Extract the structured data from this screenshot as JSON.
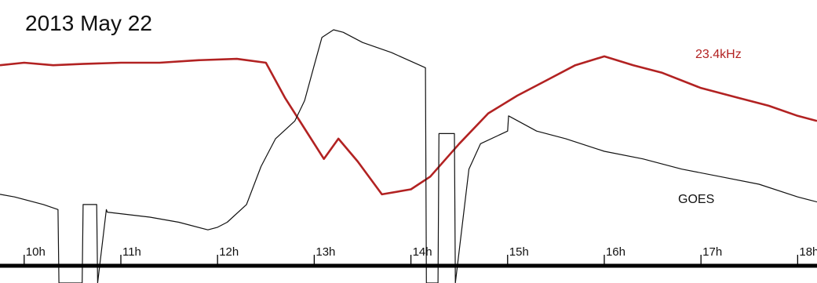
{
  "chart_data": {
    "type": "line",
    "title": "2013 May 22",
    "xlabel": "",
    "ylabel": "",
    "x_unit": "hour (UT)",
    "xlim": [
      9.75,
      18.2
    ],
    "ticks": [
      {
        "value": 10,
        "label": "10h"
      },
      {
        "value": 11,
        "label": "11h"
      },
      {
        "value": 12,
        "label": "12h"
      },
      {
        "value": 13,
        "label": "13h"
      },
      {
        "value": 14,
        "label": "14h"
      },
      {
        "value": 15,
        "label": "15h"
      },
      {
        "value": 16,
        "label": "16h"
      },
      {
        "value": 17,
        "label": "17h"
      },
      {
        "value": 18,
        "label": "18h"
      }
    ],
    "grid": false,
    "series": [
      {
        "name": "23.4kHz",
        "color": "#b22222",
        "x": [
          9.75,
          10.0,
          10.3,
          10.6,
          11.0,
          11.4,
          11.8,
          12.2,
          12.5,
          12.7,
          12.9,
          13.1,
          13.25,
          13.45,
          13.7,
          14.0,
          14.2,
          14.5,
          14.8,
          15.1,
          15.4,
          15.7,
          16.0,
          16.3,
          16.6,
          17.0,
          17.4,
          17.7,
          18.0,
          18.2
        ],
        "y": [
          0.86,
          0.87,
          0.86,
          0.865,
          0.87,
          0.87,
          0.88,
          0.885,
          0.87,
          0.73,
          0.61,
          0.49,
          0.57,
          0.48,
          0.35,
          0.37,
          0.42,
          0.55,
          0.67,
          0.74,
          0.8,
          0.86,
          0.895,
          0.86,
          0.83,
          0.77,
          0.73,
          0.7,
          0.66,
          0.64
        ]
      },
      {
        "name": "GOES",
        "color": "#111111",
        "x": [
          9.75,
          9.9,
          10.2,
          10.35,
          10.36,
          10.6,
          10.61,
          10.67,
          10.75,
          10.76,
          10.85,
          10.86,
          11.3,
          11.6,
          11.9,
          12.0,
          12.1,
          12.3,
          12.45,
          12.6,
          12.8,
          12.9,
          13.0,
          13.08,
          13.2,
          13.3,
          13.5,
          13.8,
          14.15,
          14.16,
          14.28,
          14.29,
          14.45,
          14.46,
          14.6,
          14.72,
          15.0,
          15.01,
          15.3,
          15.6,
          16.0,
          16.4,
          16.8,
          17.2,
          17.6,
          18.0,
          18.2
        ],
        "y": [
          0.35,
          0.34,
          0.31,
          0.29,
          0.0,
          0.0,
          0.31,
          0.31,
          0.31,
          0.0,
          0.29,
          0.28,
          0.26,
          0.24,
          0.21,
          0.22,
          0.24,
          0.31,
          0.46,
          0.57,
          0.64,
          0.72,
          0.86,
          0.97,
          1.0,
          0.99,
          0.95,
          0.91,
          0.85,
          0.0,
          0.0,
          0.59,
          0.59,
          0.0,
          0.45,
          0.55,
          0.6,
          0.66,
          0.6,
          0.57,
          0.52,
          0.49,
          0.45,
          0.42,
          0.39,
          0.34,
          0.32
        ]
      }
    ],
    "legend": "inline labels"
  }
}
